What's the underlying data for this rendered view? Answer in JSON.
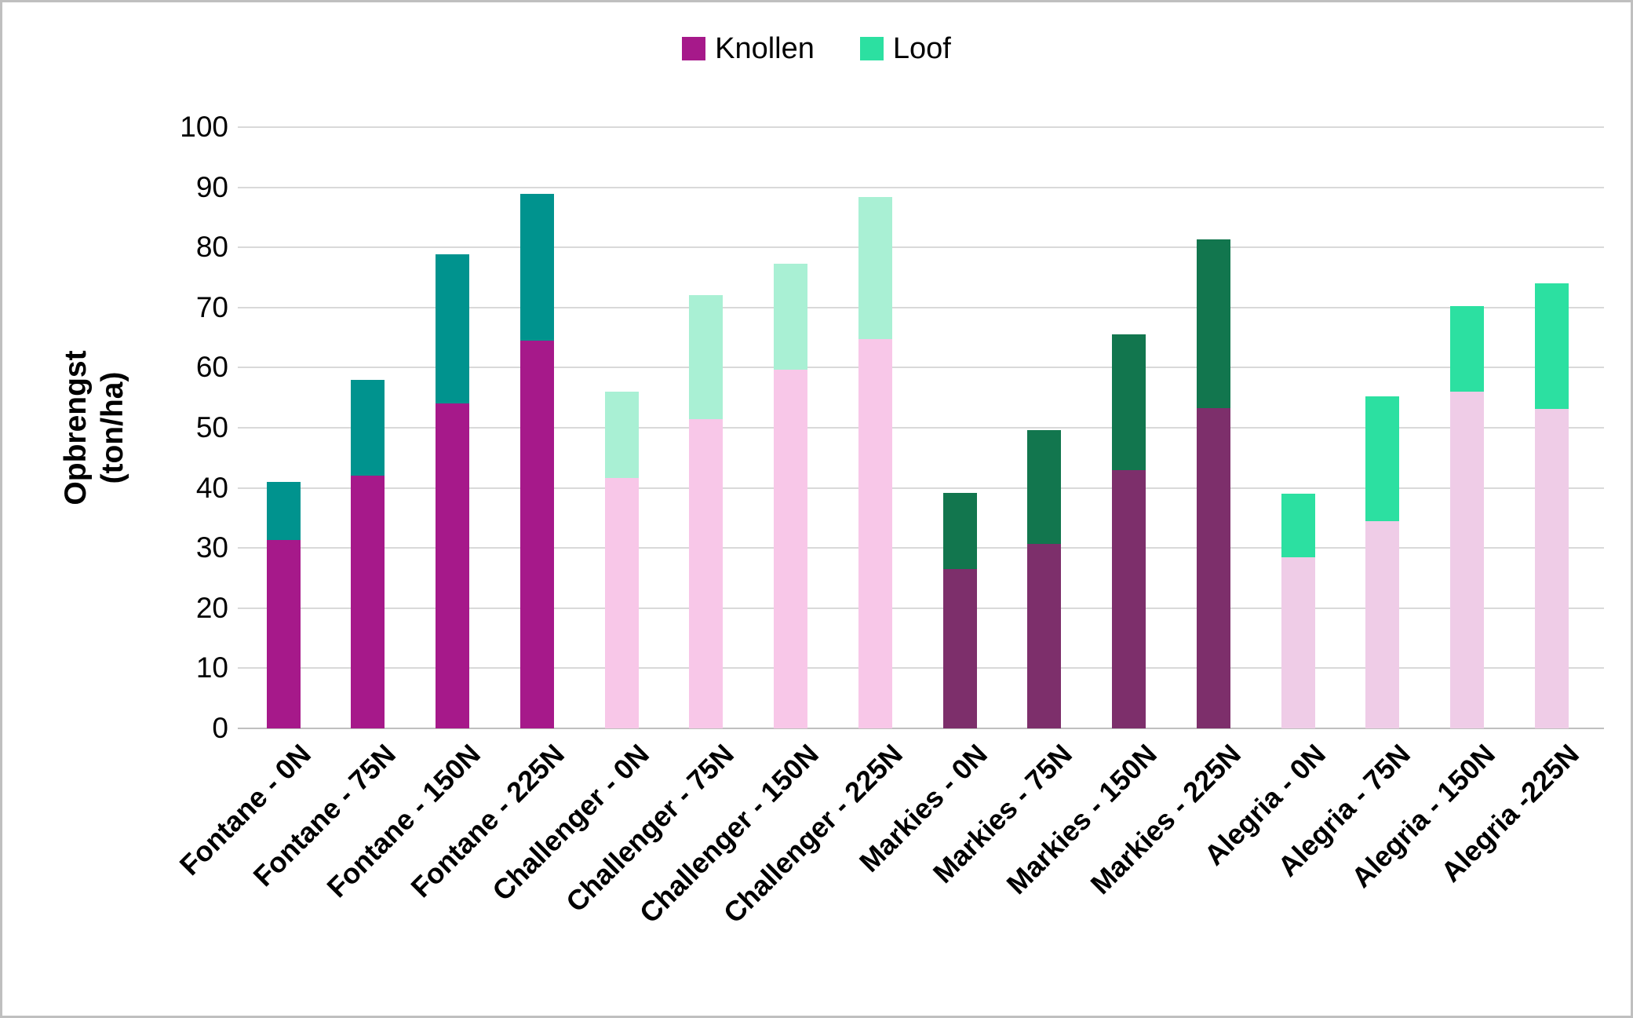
{
  "page": {
    "background": "#FFFFFF",
    "border_color": "#BFBFBF"
  },
  "chart_data": {
    "type": "bar",
    "stacked": true,
    "title": "",
    "legend_position": "top-center",
    "legend": [
      {
        "label": "Knollen",
        "color": "#A6198A"
      },
      {
        "label": "Loof",
        "color": "#2CE0A1"
      }
    ],
    "ylabel_lines": [
      "Opbrengst",
      "(ton/ha)"
    ],
    "ylabel": "Opbrengst (ton/ha)",
    "xlabel": "",
    "ylim": [
      0,
      100
    ],
    "y_ticks": [
      0,
      10,
      20,
      30,
      40,
      50,
      60,
      70,
      80,
      90,
      100
    ],
    "grid": true,
    "grid_color": "#D9D9D9",
    "axis_line_color": "#BFBFBF",
    "text_color": "#000000",
    "categories": [
      "Fontane - 0N",
      "Fontane - 75N",
      "Fontane - 150N",
      "Fontane - 225N",
      "Challenger - 0N",
      "Challenger - 75N",
      "Challenger - 150N",
      "Challenger - 225N",
      "Markies - 0N",
      "Markies - 75N",
      "Markies - 150N",
      "Markies - 225N",
      "Alegria - 0N",
      "Alegria - 75N",
      "Alegria - 150N",
      "Alegria -225N"
    ],
    "series": [
      {
        "name": "Knollen",
        "values": [
          31.3,
          42.0,
          54.0,
          64.5,
          41.7,
          51.4,
          59.7,
          64.8,
          26.5,
          30.7,
          43.0,
          53.2,
          28.5,
          34.5,
          56.0,
          53.1
        ]
      },
      {
        "name": "Loof",
        "values": [
          9.7,
          16.0,
          24.9,
          24.4,
          14.3,
          20.6,
          17.6,
          23.6,
          12.7,
          18.9,
          22.6,
          28.1,
          10.5,
          20.7,
          14.3,
          20.9
        ]
      }
    ],
    "group_colors": [
      {
        "group": "Fontane",
        "knollen": "#A6198A",
        "loof": "#00938E"
      },
      {
        "group": "Challenger",
        "knollen": "#F8C7E8",
        "loof": "#A9F0D4"
      },
      {
        "group": "Markies",
        "knollen": "#7D2F6B",
        "loof": "#12764E"
      },
      {
        "group": "Alegria",
        "knollen": "#EFCCE7",
        "loof": "#2CE0A1"
      }
    ],
    "bar_group_index": [
      0,
      0,
      0,
      0,
      1,
      1,
      1,
      1,
      2,
      2,
      2,
      2,
      3,
      3,
      3,
      3
    ]
  }
}
